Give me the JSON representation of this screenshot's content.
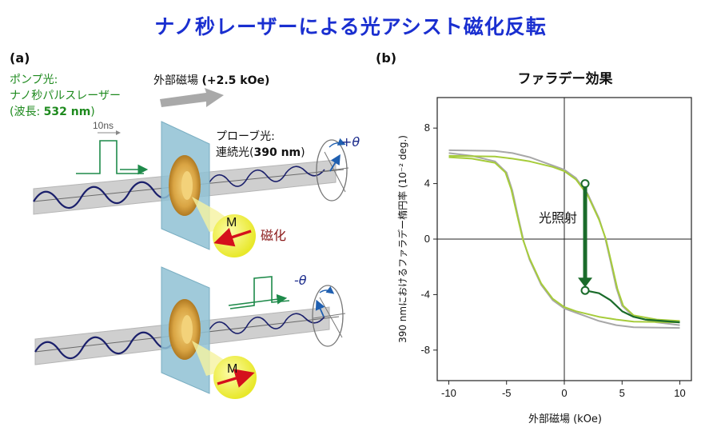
{
  "title": "ナノ秒レーザーによる光アシスト磁化反転",
  "panel_a": {
    "label": "(a)",
    "pump_line1": "ポンプ光:",
    "pump_line2": "ナノ秒パルスレーザー",
    "pump_line3_prefix": "(波長: ",
    "pump_line3_value": "532 nm",
    "pump_line3_suffix": ")",
    "field_label_prefix": "外部磁場 ",
    "field_label_value": "(+2.5 kOe)",
    "pulse_width": "10ns",
    "probe_line1": "プローブ光:",
    "probe_line2_prefix": "連続光(",
    "probe_line2_value": "390 nm",
    "probe_line2_suffix": ")",
    "plus_theta": "+θ",
    "minus_theta": "-θ",
    "magnetization": "M",
    "magnetization_label": "磁化"
  },
  "panel_b": {
    "label": "(b)"
  },
  "chart_data": {
    "type": "line",
    "title": "ファラデー効果",
    "xlabel": "外部磁場 (kOe)",
    "ylabel": "390 nmにおけるファラデー楕円率 (10⁻² deg.)",
    "xlim": [
      -11,
      11
    ],
    "ylim": [
      -10.2,
      10.2
    ],
    "xticks": [
      -10,
      -5,
      0,
      5,
      10
    ],
    "yticks": [
      -8,
      -4,
      0,
      4,
      8
    ],
    "annotation": "光照射",
    "arrow_from": [
      1.8,
      4.0
    ],
    "arrow_to": [
      1.8,
      -3.7
    ],
    "series": [
      {
        "color": "#a8a8a8",
        "descending": [
          [
            -10,
            6.4
          ],
          [
            -6,
            6.35
          ],
          [
            -4.5,
            6.2
          ],
          [
            -3,
            5.9
          ],
          [
            -2,
            5.6
          ],
          [
            -1,
            5.3
          ],
          [
            0,
            5.0
          ],
          [
            1,
            4.4
          ],
          [
            2,
            3.3
          ],
          [
            3,
            1.5
          ],
          [
            3.5,
            0.2
          ],
          [
            4,
            -1.6
          ],
          [
            4.5,
            -3.5
          ],
          [
            5,
            -4.8
          ],
          [
            6,
            -5.6
          ],
          [
            8,
            -6.0
          ],
          [
            10,
            -6.2
          ]
        ],
        "ascending": [
          [
            -10,
            6.2
          ],
          [
            -8,
            6.0
          ],
          [
            -6,
            5.6
          ],
          [
            -5,
            4.8
          ],
          [
            -4.5,
            3.5
          ],
          [
            -4,
            1.6
          ],
          [
            -3.5,
            -0.2
          ],
          [
            -3,
            -1.5
          ],
          [
            -2,
            -3.3
          ],
          [
            -1,
            -4.4
          ],
          [
            0,
            -5.0
          ],
          [
            1,
            -5.3
          ],
          [
            2,
            -5.6
          ],
          [
            3,
            -5.9
          ],
          [
            4.5,
            -6.2
          ],
          [
            6,
            -6.35
          ],
          [
            10,
            -6.4
          ]
        ]
      },
      {
        "color": "#a6cc3a",
        "descending": [
          [
            -10,
            6.0
          ],
          [
            -6,
            5.95
          ],
          [
            -4.5,
            5.8
          ],
          [
            -3,
            5.6
          ],
          [
            -2,
            5.4
          ],
          [
            -1,
            5.2
          ],
          [
            0,
            4.9
          ],
          [
            1,
            4.3
          ],
          [
            2,
            3.2
          ],
          [
            3,
            1.4
          ],
          [
            3.6,
            0.0
          ],
          [
            4.1,
            -1.8
          ],
          [
            4.6,
            -3.6
          ],
          [
            5.1,
            -4.8
          ],
          [
            6,
            -5.5
          ],
          [
            8,
            -5.8
          ],
          [
            10,
            -5.9
          ]
        ],
        "ascending": [
          [
            -10,
            5.9
          ],
          [
            -8,
            5.8
          ],
          [
            -6,
            5.5
          ],
          [
            -5.1,
            4.8
          ],
          [
            -4.6,
            3.6
          ],
          [
            -4.1,
            1.8
          ],
          [
            -3.6,
            0.0
          ],
          [
            -3,
            -1.4
          ],
          [
            -2,
            -3.2
          ],
          [
            -1,
            -4.3
          ],
          [
            0,
            -4.9
          ],
          [
            1,
            -5.2
          ],
          [
            2,
            -5.4
          ],
          [
            3,
            -5.6
          ],
          [
            4.5,
            -5.8
          ],
          [
            6,
            -5.95
          ],
          [
            10,
            -6.0
          ]
        ]
      },
      {
        "color": "#1a6b2a",
        "after_irradiation": [
          [
            1.8,
            -3.7
          ],
          [
            3,
            -3.9
          ],
          [
            4,
            -4.4
          ],
          [
            5,
            -5.2
          ],
          [
            6,
            -5.6
          ],
          [
            7,
            -5.8
          ],
          [
            8.5,
            -5.9
          ],
          [
            10,
            -6.0
          ]
        ]
      }
    ]
  }
}
